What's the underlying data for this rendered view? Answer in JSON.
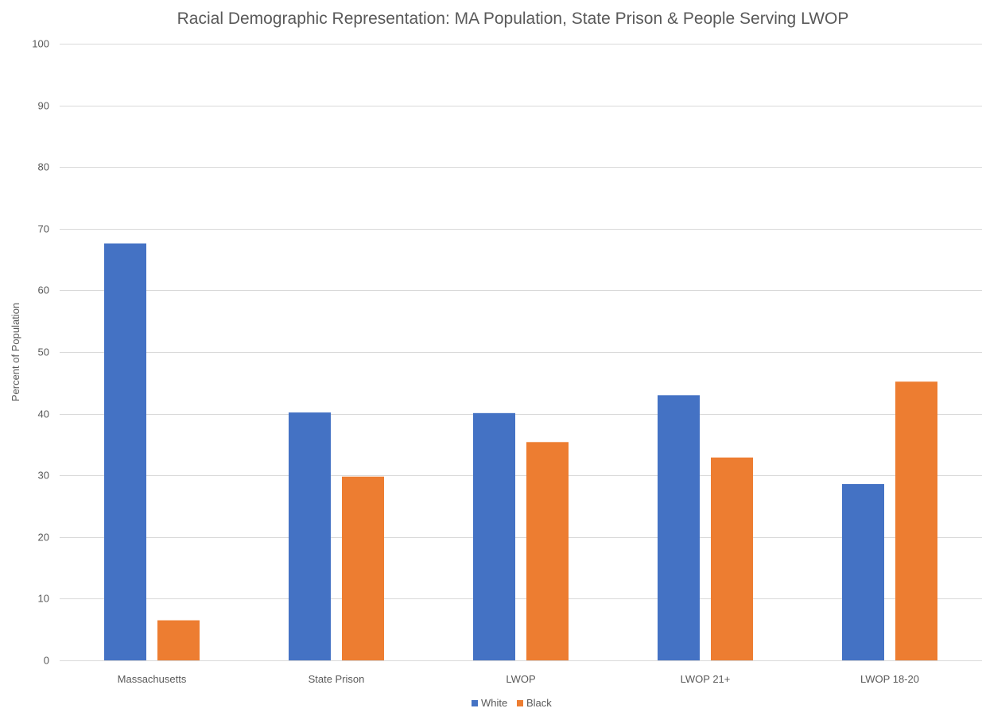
{
  "chart_data": {
    "type": "bar",
    "title": "Racial Demographic Representation: MA Population, State Prison & People Serving LWOP",
    "xlabel": "",
    "ylabel": "Percent of Population",
    "ylim": [
      0,
      100
    ],
    "yticks": [
      0,
      10,
      20,
      30,
      40,
      50,
      60,
      70,
      80,
      90,
      100
    ],
    "grid": true,
    "legend_position": "bottom",
    "categories": [
      "Massachusetts",
      "State Prison",
      "LWOP",
      "LWOP 21+",
      "LWOP 18-20"
    ],
    "series": [
      {
        "name": "White",
        "color": "#4472c4",
        "values": [
          67.6,
          40.2,
          40.1,
          43.0,
          28.6
        ]
      },
      {
        "name": "Black",
        "color": "#ed7d31",
        "values": [
          6.5,
          29.8,
          35.4,
          32.9,
          45.2
        ]
      }
    ]
  }
}
